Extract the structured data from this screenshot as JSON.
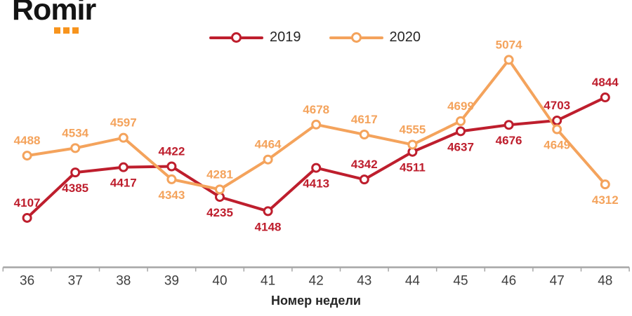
{
  "logo": {
    "text": "Romir",
    "dots_color": "#F7941D"
  },
  "legend": [
    {
      "label": "2019",
      "color": "#BE1E2D"
    },
    {
      "label": "2020",
      "color": "#F4A35C"
    }
  ],
  "chart_data": {
    "type": "line",
    "x": [
      36,
      37,
      38,
      39,
      40,
      41,
      42,
      43,
      44,
      45,
      46,
      47,
      48
    ],
    "xlabel": "Номер недели",
    "series": [
      {
        "name": "2019",
        "color": "#BE1E2D",
        "values": [
          4107,
          4385,
          4417,
          4422,
          4235,
          4148,
          4413,
          4342,
          4511,
          4637,
          4676,
          4703,
          4844
        ],
        "label_positions": [
          "above",
          "below",
          "below",
          "above",
          "below",
          "below",
          "below",
          "above",
          "below",
          "below",
          "below",
          "above",
          "above"
        ]
      },
      {
        "name": "2020",
        "color": "#F4A35C",
        "values": [
          4488,
          4534,
          4597,
          4343,
          4281,
          4464,
          4678,
          4617,
          4555,
          4699,
          5074,
          4649,
          4312
        ],
        "label_positions": [
          "above",
          "above",
          "above",
          "below",
          "above",
          "above",
          "above",
          "above",
          "above",
          "above",
          "above",
          "below",
          "below"
        ]
      }
    ],
    "ylim": [
      4100,
      5100
    ],
    "grid": false,
    "legend_position": "top",
    "data_labels": true,
    "marker": "open-circle",
    "axis_color": "#A6A6A6"
  }
}
